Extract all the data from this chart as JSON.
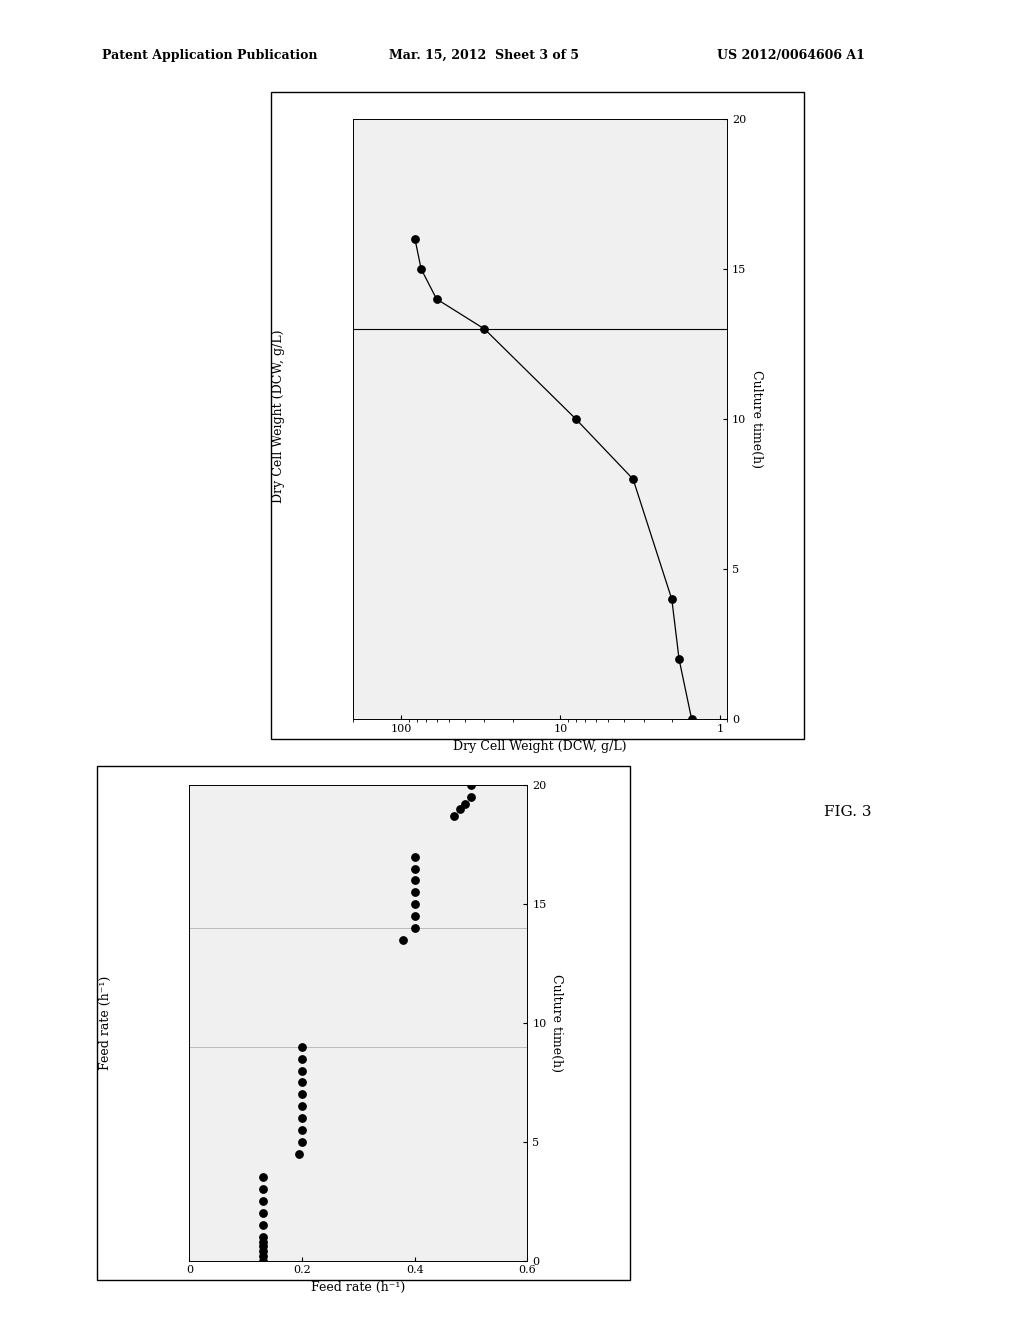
{
  "fig_width": 10.24,
  "fig_height": 13.2,
  "background_color": "#ffffff",
  "header_left": "Patent Application Publication",
  "header_mid": "Mar. 15, 2012  Sheet 3 of 5",
  "header_right": "US 2012/0064606 A1",
  "fig_label": "FIG. 3",
  "plot1": {
    "dcw_label": "Dry Cell Weight (DCW, g/L)",
    "time_label": "Culture time(h)",
    "time_data": [
      0,
      2,
      4,
      8,
      10,
      13,
      14,
      15,
      16
    ],
    "dcw_data": [
      1.5,
      1.8,
      2.0,
      3.5,
      8.0,
      30.0,
      60.0,
      75.0,
      82.0
    ],
    "dcw_ticks": [
      1,
      10,
      100
    ],
    "dcw_tick_labels": [
      "1",
      "10",
      "100"
    ],
    "time_ticks": [
      0,
      5,
      10,
      15,
      20
    ],
    "time_lim": [
      0,
      20
    ],
    "dcw_lim": [
      1,
      200
    ],
    "vline_time": 13
  },
  "plot2": {
    "feed_label": "Feed rate (h⁻¹)",
    "time_label": "Culture time(h)",
    "feed_data": [
      0.5,
      0.5,
      0.49,
      0.48,
      0.47,
      0.4,
      0.4,
      0.4,
      0.4,
      0.4,
      0.4,
      0.4,
      0.38,
      0.2,
      0.2,
      0.2,
      0.2,
      0.2,
      0.2,
      0.2,
      0.2,
      0.2,
      0.195,
      0.13,
      0.13,
      0.13,
      0.13,
      0.13,
      0.13,
      0.13,
      0.13,
      0.13,
      0.13,
      0.13
    ],
    "time_data": [
      20.0,
      19.5,
      19.2,
      19.0,
      18.7,
      17.0,
      16.5,
      16.0,
      15.5,
      15.0,
      14.5,
      14.0,
      13.5,
      9.0,
      8.5,
      8.0,
      7.5,
      7.0,
      6.5,
      6.0,
      5.5,
      5.0,
      4.5,
      3.5,
      3.0,
      2.5,
      2.0,
      1.5,
      1.0,
      0.8,
      0.6,
      0.4,
      0.2,
      0.0
    ],
    "feed_ticks": [
      0,
      0.2,
      0.4,
      0.6
    ],
    "feed_tick_labels": [
      "0",
      "0.2",
      "0.4",
      "0.6"
    ],
    "time_ticks": [
      0,
      5,
      10,
      15,
      20
    ],
    "feed_lim": [
      0,
      0.6
    ],
    "time_lim": [
      0,
      20
    ],
    "hline1": 9.0,
    "hline2": 14.0
  }
}
